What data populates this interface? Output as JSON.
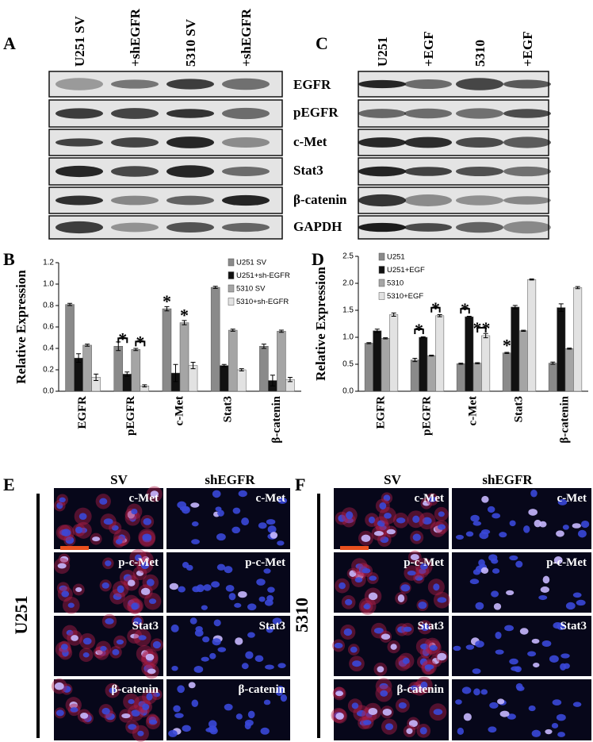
{
  "figure": {
    "panel_labels": [
      "A",
      "B",
      "C",
      "D",
      "E",
      "F"
    ],
    "blot_a": {
      "lanes": [
        "U251 SV",
        "+shEGFR",
        "5310 SV",
        "+shEGFR"
      ],
      "proteins": [
        "EGFR",
        "pEGFR",
        "c-Met",
        "Stat3",
        "β-catenin",
        "GAPDH"
      ]
    },
    "blot_c": {
      "lanes": [
        "U251",
        "+EGF",
        "5310",
        "+EGF"
      ]
    },
    "micrograph_e": {
      "columns": [
        "SV",
        "shEGFR"
      ],
      "cell_line": "U251",
      "stains": [
        [
          "c-Met",
          "c-Met"
        ],
        [
          "p-c-Met",
          "p-c-Met"
        ],
        [
          "Stat3",
          "Stat3"
        ],
        [
          "β-catenin",
          "β-catenin"
        ]
      ]
    },
    "micrograph_f": {
      "columns": [
        "SV",
        "shEGFR"
      ],
      "cell_line": "5310",
      "stains": [
        [
          "c-Met",
          "c-Met"
        ],
        [
          "p-c-Met",
          "p-c-Met"
        ],
        [
          "Stat3",
          "Stat3"
        ],
        [
          "β-catenin"
        ]
      ]
    }
  },
  "chart_data": [
    {
      "type": "bar",
      "y_label": "Relative Expression",
      "categories": [
        "EGFR",
        "pEGFR",
        "c-Met",
        "Stat3",
        "β-catenin"
      ],
      "series": [
        {
          "name": "U251 SV",
          "color": "#8a8a8a",
          "values": [
            0.81,
            0.42,
            0.77,
            0.97,
            0.42
          ],
          "errors": [
            0.01,
            0.04,
            0.02,
            0.01,
            0.02
          ]
        },
        {
          "name": "U251+sh-EGFR",
          "color": "#111111",
          "values": [
            0.31,
            0.16,
            0.17,
            0.24,
            0.1
          ],
          "errors": [
            0.04,
            0.02,
            0.08,
            0.01,
            0.05
          ]
        },
        {
          "name": "5310 SV",
          "color": "#a5a5a5",
          "values": [
            0.43,
            0.39,
            0.64,
            0.57,
            0.56
          ],
          "errors": [
            0.01,
            0.01,
            0.02,
            0.01,
            0.01
          ]
        },
        {
          "name": "5310+sh-EGFR",
          "color": "#e2e2e2",
          "values": [
            0.13,
            0.05,
            0.24,
            0.2,
            0.11
          ],
          "errors": [
            0.03,
            0.01,
            0.03,
            0.01,
            0.02
          ]
        }
      ],
      "annotations": [
        "*",
        "*",
        "*",
        "*"
      ],
      "ylim": [
        0,
        1.2
      ],
      "yticks": [
        {
          "value": 0,
          "label": "0.0"
        },
        0.2,
        0.4,
        0.6,
        0.8,
        {
          "value": 1,
          "label": "1.0"
        },
        1.2
      ]
    },
    {
      "type": "bar",
      "y_label": "Relative Expression",
      "categories": [
        "EGFR",
        "pEGFR",
        "c-Met",
        "Stat3",
        "β-catenin"
      ],
      "series": [
        {
          "name": "U251",
          "color": "#8a8a8a",
          "values": [
            0.89,
            0.58,
            0.51,
            0.71,
            0.52
          ],
          "errors": [
            0.01,
            0.03,
            0.01,
            0.01,
            0.02
          ]
        },
        {
          "name": "U251+EGF",
          "color": "#111111",
          "values": [
            1.12,
            1.0,
            1.38,
            1.56,
            1.55
          ],
          "errors": [
            0.03,
            0.01,
            0.01,
            0.03,
            0.07
          ]
        },
        {
          "name": "5310",
          "color": "#a5a5a5",
          "values": [
            0.98,
            0.66,
            0.52,
            1.12,
            0.79
          ],
          "errors": [
            0.01,
            0.01,
            0.01,
            0.01,
            0.01
          ]
        },
        {
          "name": "5310+EGF",
          "color": "#e2e2e2",
          "values": [
            1.42,
            1.4,
            1.03,
            2.07,
            1.92
          ],
          "errors": [
            0.03,
            0.02,
            0.04,
            0.01,
            0.02
          ]
        }
      ],
      "annotations": [
        "*",
        "*",
        "*",
        "**",
        "*"
      ],
      "ylim": [
        0,
        2.5
      ],
      "yticks": [
        {
          "value": 0,
          "label": "0.0"
        },
        0.5,
        {
          "value": 1,
          "label": "1.0"
        },
        1.5,
        {
          "value": 2,
          "label": "2.0"
        },
        2.5
      ]
    }
  ]
}
